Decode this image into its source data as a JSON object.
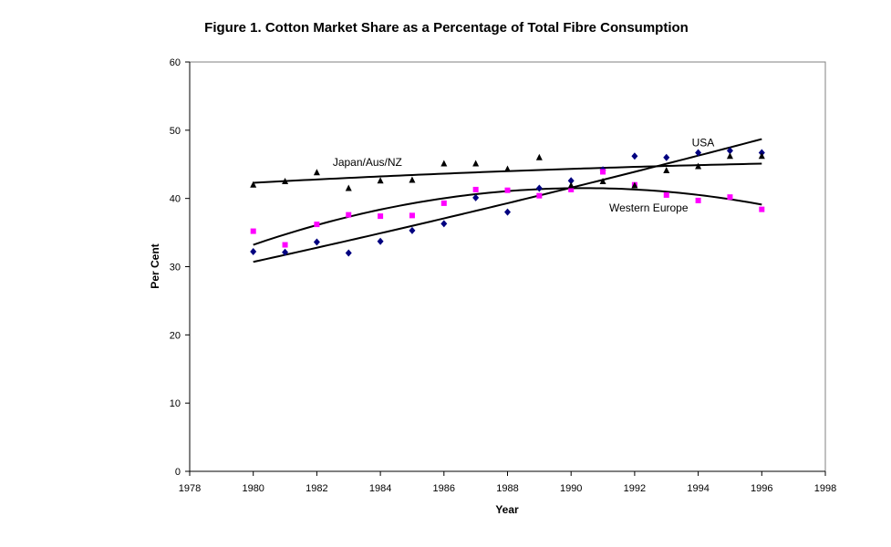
{
  "chart_data": {
    "type": "scatter",
    "title": "Figure 1. Cotton Market Share as a Percentage of Total Fibre Consumption",
    "xlabel": "Year",
    "ylabel": "Per Cent",
    "xlim": [
      1978,
      1998
    ],
    "ylim": [
      0,
      60
    ],
    "x_ticks": [
      1978,
      1980,
      1982,
      1984,
      1986,
      1988,
      1990,
      1992,
      1994,
      1996,
      1998
    ],
    "y_ticks": [
      0,
      10,
      20,
      30,
      40,
      50,
      60
    ],
    "grid": false,
    "trendlines": true,
    "series": [
      {
        "label": "USA",
        "marker": "diamond",
        "color": "#000080",
        "x": [
          1980,
          1981,
          1982,
          1983,
          1984,
          1985,
          1986,
          1987,
          1988,
          1989,
          1990,
          1991,
          1992,
          1993,
          1994,
          1995,
          1996
        ],
        "y": [
          32.2,
          32.1,
          33.6,
          32.0,
          33.7,
          35.3,
          36.3,
          40.1,
          38.0,
          41.5,
          42.6,
          44.2,
          46.2,
          46.0,
          46.7,
          47.0,
          46.7
        ],
        "trend": {
          "kind": "quadratic",
          "x": [
            1980,
            1988,
            1996
          ],
          "y": [
            30.7,
            39.3,
            48.7
          ]
        },
        "annotation_year": 1993.8,
        "annotation_value": 48.2
      },
      {
        "label": "Western Europe",
        "marker": "square",
        "color": "#ff00ff",
        "x": [
          1980,
          1981,
          1982,
          1983,
          1984,
          1985,
          1986,
          1987,
          1988,
          1989,
          1990,
          1991,
          1992,
          1993,
          1994,
          1995,
          1996
        ],
        "y": [
          35.2,
          33.2,
          36.2,
          37.6,
          37.4,
          37.5,
          39.3,
          41.3,
          41.2,
          40.4,
          41.3,
          43.9,
          42.0,
          40.5,
          39.7,
          40.2,
          38.4
        ],
        "trend": {
          "kind": "quadratic",
          "x": [
            1980,
            1990,
            1996
          ],
          "y": [
            33.2,
            41.5,
            39.1
          ]
        },
        "annotation_year": 1991.2,
        "annotation_value": 38.6
      },
      {
        "label": "Japan/Aus/NZ",
        "marker": "triangle",
        "color": "#000000",
        "x": [
          1980,
          1981,
          1982,
          1983,
          1984,
          1985,
          1986,
          1987,
          1988,
          1989,
          1990,
          1991,
          1992,
          1993,
          1994,
          1995,
          1996
        ],
        "y": [
          42.0,
          42.5,
          43.8,
          41.5,
          42.6,
          42.7,
          45.1,
          45.1,
          44.3,
          46.0,
          41.9,
          42.5,
          41.9,
          44.1,
          44.7,
          46.2,
          46.2
        ],
        "trend": {
          "kind": "quadratic",
          "x": [
            1980,
            1988,
            1996
          ],
          "y": [
            42.3,
            44.0,
            45.1
          ]
        },
        "annotation_year": 1982.5,
        "annotation_value": 45.3
      }
    ]
  }
}
